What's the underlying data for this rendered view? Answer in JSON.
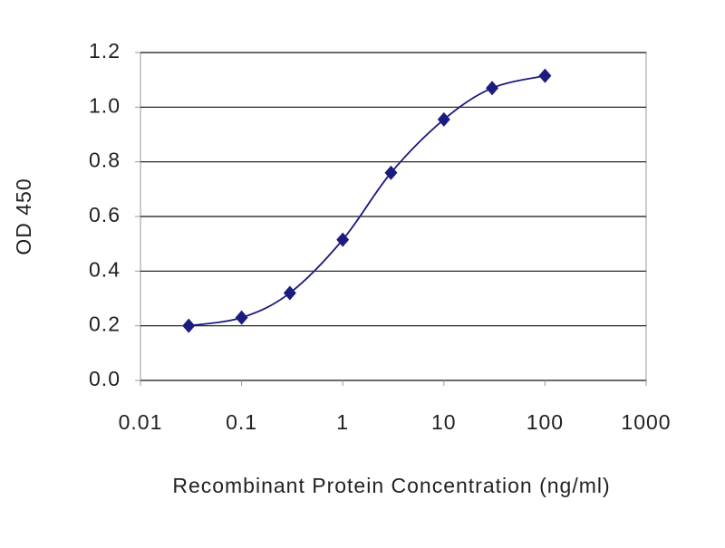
{
  "chart_data": {
    "type": "line",
    "x_label": "Recombinant Protein Concentration (ng/ml)",
    "y_label": "OD 450",
    "x": [
      0.03,
      0.1,
      0.3,
      1,
      3,
      10,
      30,
      100
    ],
    "series": [
      {
        "color": "#1c1c80",
        "values": [
          0.2,
          0.23,
          0.32,
          0.515,
          0.76,
          0.955,
          1.07,
          1.115
        ]
      }
    ],
    "xscale": "log",
    "xlim": [
      0.01,
      1000
    ],
    "xticks": [
      0.01,
      0.1,
      1,
      10,
      100,
      1000
    ],
    "ylim": [
      0,
      1.2
    ],
    "yticks": [
      {
        "value": 0,
        "label": "0.0"
      },
      0.2,
      0.4,
      0.6,
      0.8,
      {
        "value": 1,
        "label": "1.0"
      },
      1.2
    ],
    "grid": true
  }
}
